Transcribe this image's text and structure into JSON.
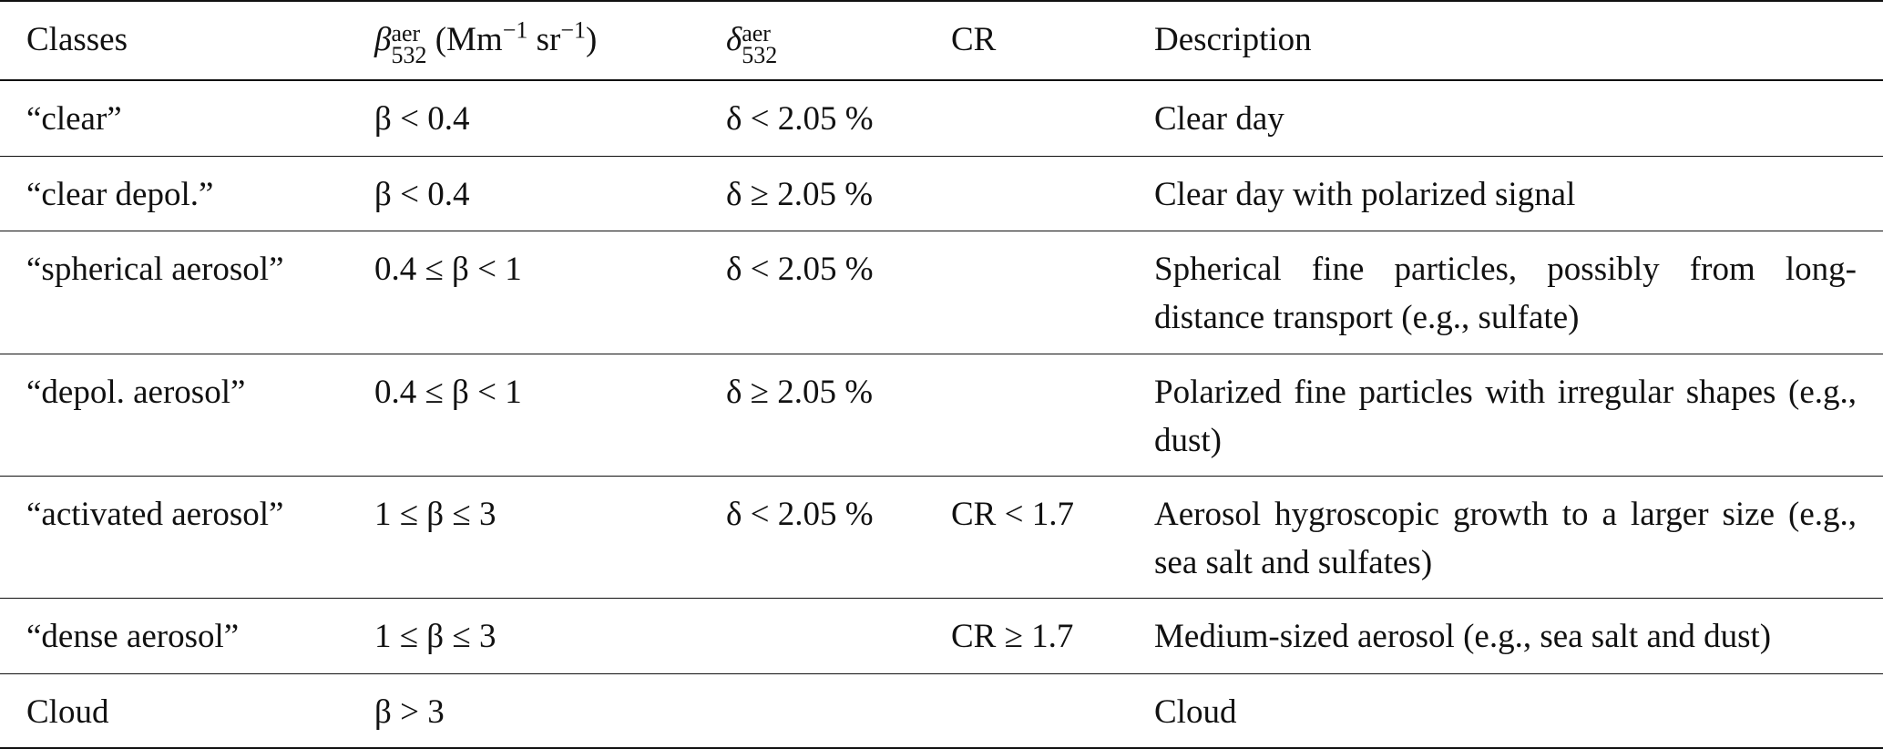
{
  "table": {
    "header": {
      "classes": "Classes",
      "beta": {
        "symbol": "β",
        "sup": "aer",
        "sub": "532",
        "unit": "(Mm",
        "unit_exp": "−1",
        "unit2": "sr",
        "unit2_exp": "−1",
        "close": ")"
      },
      "delta": {
        "symbol": "δ",
        "sup": "aer",
        "sub": "532"
      },
      "cr": "CR",
      "description": "Description"
    },
    "rows": [
      {
        "class": "“clear”",
        "beta": "β < 0.4",
        "delta": "δ < 2.05 %",
        "description": "Clear day"
      },
      {
        "class": "“clear depol.”",
        "beta": "β < 0.4",
        "delta": "δ ≥ 2.05 %",
        "description": "Clear day with polarized signal"
      },
      {
        "class": "“spherical aerosol”",
        "beta": "0.4 ≤ β < 1",
        "delta": "δ < 2.05 %",
        "description": "Spherical fine particles, possibly from long-distance transport (e.g., sulfate)"
      },
      {
        "class": "“depol. aerosol”",
        "beta": "0.4 ≤ β < 1",
        "delta": "δ ≥ 2.05 %",
        "description": "Polarized fine particles with irregular shapes (e.g., dust)"
      },
      {
        "class": "“activated aerosol”",
        "beta": "1 ≤ β ≤ 3",
        "delta": "δ < 2.05 %",
        "cr": "CR < 1.7",
        "description": "Aerosol hygroscopic growth to a larger size (e.g., sea salt and sulfates)"
      },
      {
        "class": "“dense aerosol”",
        "beta": "1 ≤ β ≤ 3",
        "cr": "CR ≥ 1.7",
        "description": "Medium-sized aerosol (e.g., sea salt and dust)"
      },
      {
        "class": "Cloud",
        "beta": "β > 3",
        "description": "Cloud"
      }
    ]
  }
}
